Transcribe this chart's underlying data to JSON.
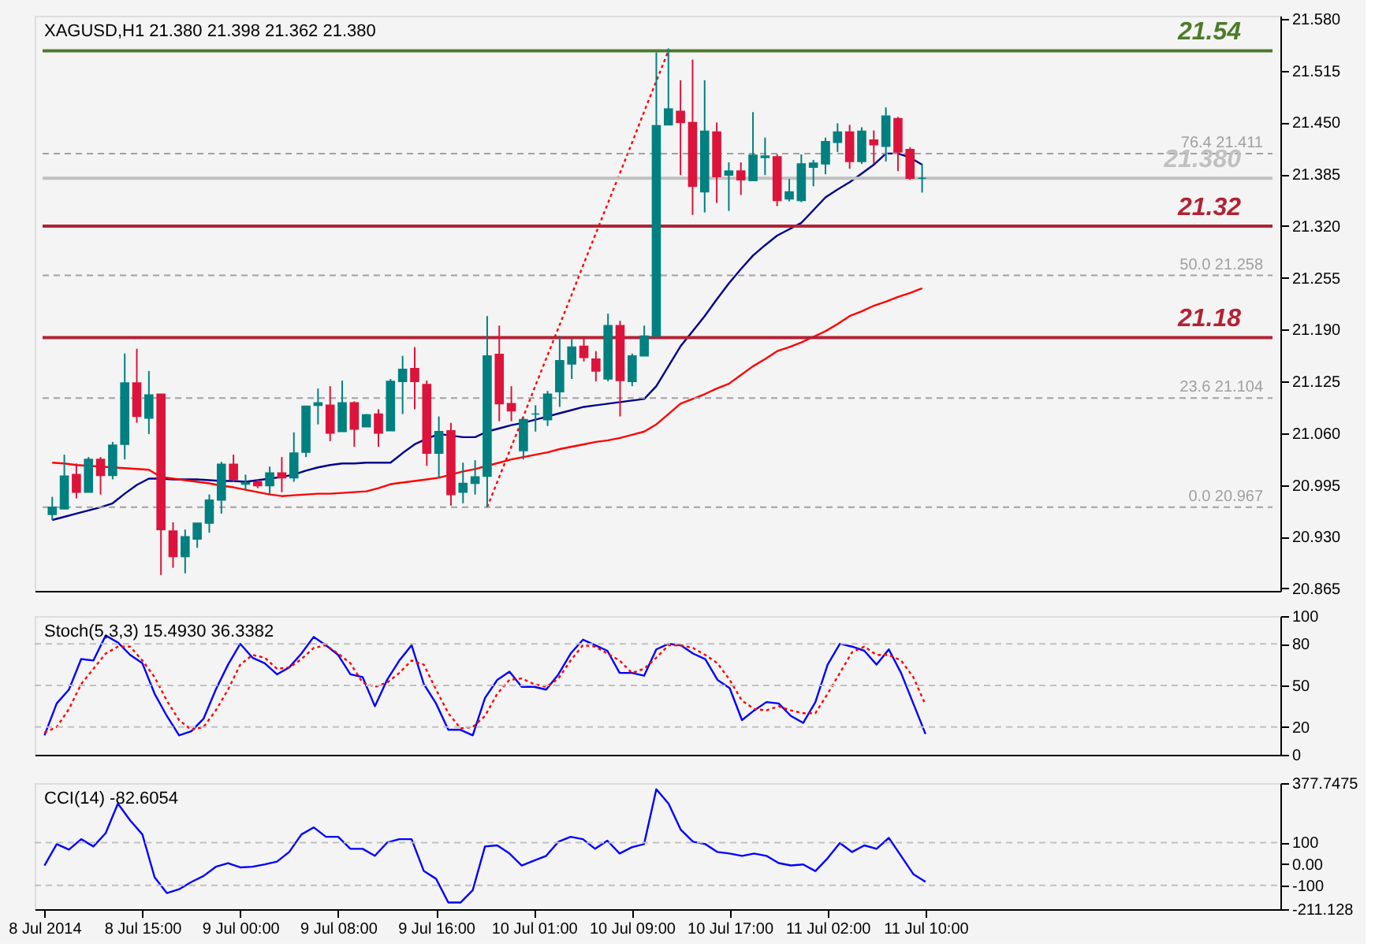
{
  "chart_data": [
    {
      "type": "candlestick",
      "title": "XAGUSD,H1  21.380 21.398 21.362 21.380",
      "categories": [
        null,
        null,
        null,
        null,
        null,
        null,
        null,
        null,
        null,
        null,
        null,
        null,
        null,
        null,
        null,
        null,
        null,
        null,
        null,
        null,
        null,
        null,
        null,
        null,
        null,
        null,
        null,
        null,
        null,
        null,
        null,
        null,
        null,
        null,
        null,
        null,
        null,
        null,
        null,
        null,
        null,
        null,
        null,
        null,
        null,
        null,
        null,
        null,
        null,
        null,
        null,
        null,
        null,
        null,
        null,
        null,
        null,
        null,
        null,
        null,
        null,
        null,
        null,
        null,
        null,
        null,
        null,
        null,
        null,
        null,
        null,
        null,
        null
      ],
      "ohlc": [
        [
          20.958,
          20.98,
          20.951,
          20.967
        ],
        [
          20.965,
          21.033,
          20.965,
          21.006
        ],
        [
          21.008,
          21.022,
          20.978,
          20.986
        ],
        [
          20.986,
          21.03,
          20.986,
          21.027
        ],
        [
          21.027,
          21.03,
          20.983,
          21.007
        ],
        [
          21.007,
          21.049,
          21.002,
          21.045
        ],
        [
          21.046,
          21.16,
          21.027,
          21.123
        ],
        [
          21.123,
          21.166,
          21.073,
          21.081
        ],
        [
          21.079,
          21.138,
          21.059,
          21.108
        ],
        [
          21.109,
          21.109,
          20.882,
          20.939
        ],
        [
          20.937,
          20.948,
          20.891,
          20.905
        ],
        [
          20.905,
          20.939,
          20.884,
          20.93
        ],
        [
          20.927,
          20.947,
          20.916,
          20.947
        ],
        [
          20.947,
          20.983,
          20.935,
          20.976
        ],
        [
          20.976,
          21.024,
          20.959,
          21.021
        ],
        [
          21.021,
          21.033,
          20.999,
          21.002
        ],
        [
          20.996,
          21.008,
          20.989,
          20.998
        ],
        [
          20.999,
          21.002,
          20.991,
          20.994
        ],
        [
          20.994,
          21.018,
          20.983,
          21.01
        ],
        [
          21.01,
          21.03,
          20.986,
          21.004
        ],
        [
          21.004,
          21.061,
          20.999,
          21.035
        ],
        [
          21.036,
          21.094,
          21.03,
          21.094
        ],
        [
          21.095,
          21.116,
          21.071,
          21.098
        ],
        [
          21.095,
          21.119,
          21.05,
          21.06
        ],
        [
          21.062,
          21.126,
          21.062,
          21.098
        ],
        [
          21.098,
          21.1,
          21.043,
          21.065
        ],
        [
          21.068,
          21.084,
          21.068,
          21.083
        ],
        [
          21.084,
          21.09,
          21.043,
          21.06
        ],
        [
          21.063,
          21.128,
          21.063,
          21.125
        ],
        [
          21.125,
          21.157,
          21.084,
          21.14
        ],
        [
          21.141,
          21.168,
          21.09,
          21.125
        ],
        [
          21.121,
          21.126,
          21.019,
          21.035
        ],
        [
          21.035,
          21.081,
          21.004,
          21.062
        ],
        [
          21.063,
          21.073,
          20.969,
          20.983
        ],
        [
          20.986,
          21.023,
          20.972,
          20.997
        ],
        [
          20.997,
          21.026,
          20.983,
          21.005
        ],
        [
          21.006,
          21.207,
          20.967,
          21.157
        ],
        [
          21.159,
          21.195,
          21.075,
          21.097
        ],
        [
          21.097,
          21.119,
          21.075,
          21.088
        ],
        [
          21.038,
          21.08,
          21.027,
          21.077
        ],
        [
          21.084,
          21.095,
          21.062,
          21.084
        ],
        [
          21.077,
          21.113,
          21.069,
          21.109
        ],
        [
          21.112,
          21.182,
          21.093,
          21.151
        ],
        [
          21.147,
          21.179,
          21.128,
          21.168
        ],
        [
          21.169,
          21.179,
          21.15,
          21.155
        ],
        [
          21.153,
          21.163,
          21.125,
          21.138
        ],
        [
          21.128,
          21.21,
          21.125,
          21.195
        ],
        [
          21.195,
          21.201,
          21.081,
          21.126
        ],
        [
          21.125,
          21.16,
          21.119,
          21.157
        ],
        [
          21.157,
          21.195,
          21.157,
          21.182
        ],
        [
          21.182,
          21.538,
          21.182,
          21.446
        ],
        [
          21.447,
          21.543,
          21.447,
          21.467
        ],
        [
          21.464,
          21.503,
          21.384,
          21.45
        ],
        [
          21.45,
          21.529,
          21.334,
          21.37
        ],
        [
          21.363,
          21.503,
          21.337,
          21.439
        ],
        [
          21.438,
          21.45,
          21.349,
          21.382
        ],
        [
          21.384,
          21.4,
          21.339,
          21.389
        ],
        [
          21.389,
          21.4,
          21.359,
          21.378
        ],
        [
          21.377,
          21.463,
          21.377,
          21.409
        ],
        [
          21.406,
          21.431,
          21.384,
          21.408
        ],
        [
          21.407,
          21.41,
          21.345,
          21.352
        ],
        [
          21.354,
          21.379,
          21.351,
          21.363
        ],
        [
          21.352,
          21.41,
          21.35,
          21.398
        ],
        [
          21.394,
          21.403,
          21.37,
          21.399
        ],
        [
          21.398,
          21.431,
          21.385,
          21.426
        ],
        [
          21.425,
          21.449,
          21.413,
          21.438
        ],
        [
          21.438,
          21.447,
          21.392,
          21.401
        ],
        [
          21.401,
          21.444,
          21.398,
          21.439
        ],
        [
          21.428,
          21.44,
          21.398,
          21.422
        ],
        [
          21.42,
          21.469,
          21.401,
          21.458
        ],
        [
          21.455,
          21.457,
          21.389,
          21.413
        ],
        [
          21.416,
          21.419,
          21.378,
          21.38
        ],
        [
          21.38,
          21.398,
          21.362,
          21.38
        ]
      ],
      "colors": [
        "#008080",
        "#008080",
        "#dc143c",
        "#008080",
        "#dc143c",
        "#008080",
        "#008080",
        "#dc143c",
        "#008080",
        "#dc143c",
        "#dc143c",
        "#008080",
        "#008080",
        "#008080",
        "#008080",
        "#dc143c",
        "#008080",
        "#dc143c",
        "#008080",
        "#dc143c",
        "#008080",
        "#008080",
        "#008080",
        "#dc143c",
        "#008080",
        "#dc143c",
        "#008080",
        "#dc143c",
        "#008080",
        "#008080",
        "#dc143c",
        "#dc143c",
        "#008080",
        "#dc143c",
        "#008080",
        "#008080",
        "#008080",
        "#dc143c",
        "#dc143c",
        "#008080",
        "#008080",
        "#008080",
        "#008080",
        "#008080",
        "#dc143c",
        "#dc143c",
        "#008080",
        "#dc143c",
        "#008080",
        "#008080",
        "#008080",
        "#008080",
        "#dc143c",
        "#dc143c",
        "#008080",
        "#dc143c",
        "#008080",
        "#dc143c",
        "#008080",
        "#008080",
        "#dc143c",
        "#008080",
        "#008080",
        "#008080",
        "#008080",
        "#008080",
        "#dc143c",
        "#008080",
        "#dc143c",
        "#008080",
        "#dc143c",
        "#dc143c",
        "#008080"
      ],
      "series": [
        {
          "type": "line",
          "color": "#00008b",
          "line_style": "solid",
          "values": [
            20.951,
            20.955,
            20.959,
            20.963,
            20.967,
            20.972,
            20.984,
            20.995,
            21.003,
            21.003,
            21.002,
            21.002,
            21.002,
            21.001,
            21.0,
            21.0,
            20.999,
            21.001,
            21.003,
            21.005,
            21.008,
            21.013,
            21.017,
            21.02,
            21.022,
            21.022,
            21.023,
            21.023,
            21.023,
            21.035,
            21.046,
            21.053,
            21.059,
            21.057,
            21.055,
            21.055,
            21.062,
            21.066,
            21.07,
            21.073,
            21.077,
            21.081,
            21.085,
            21.089,
            21.093,
            21.095,
            21.097,
            21.099,
            21.101,
            21.103,
            21.119,
            21.144,
            21.169,
            21.188,
            21.207,
            21.228,
            21.248,
            21.266,
            21.283,
            21.296,
            21.308,
            21.316,
            21.324,
            21.34,
            21.356,
            21.366,
            21.375,
            21.386,
            21.397,
            21.411,
            21.411,
            21.406,
            21.397
          ]
        },
        {
          "type": "line",
          "color": "#ff0000",
          "line_style": "solid",
          "values": [
            21.023,
            21.022,
            21.02,
            21.019,
            21.018,
            21.017,
            21.016,
            21.015,
            21.014,
            21.005,
            21.003,
            21.001,
            20.999,
            20.997,
            20.994,
            20.992,
            20.989,
            20.986,
            20.983,
            20.981,
            20.982,
            20.983,
            20.984,
            20.984,
            20.985,
            20.986,
            20.987,
            20.991,
            20.996,
            20.998,
            21.0,
            21.002,
            21.004,
            21.008,
            21.012,
            21.015,
            21.019,
            21.023,
            21.027,
            21.03,
            21.033,
            21.036,
            21.04,
            21.043,
            21.046,
            21.049,
            21.051,
            21.054,
            21.058,
            21.062,
            21.071,
            21.084,
            21.097,
            21.103,
            21.109,
            21.116,
            21.122,
            21.133,
            21.144,
            21.153,
            21.163,
            21.168,
            21.174,
            21.181,
            21.188,
            21.197,
            21.207,
            21.213,
            21.22,
            21.225,
            21.231,
            21.236,
            21.242
          ]
        },
        {
          "type": "line",
          "color": "#ff0000",
          "line_style": "dotted",
          "values": [
            null,
            null,
            null,
            null,
            null,
            null,
            null,
            null,
            null,
            null,
            null,
            null,
            null,
            null,
            null,
            null,
            null,
            null,
            null,
            null,
            null,
            null,
            null,
            null,
            null,
            null,
            null,
            null,
            null,
            null,
            null,
            null,
            null,
            null,
            null,
            null,
            20.967,
            21.005,
            21.043,
            21.081,
            21.12,
            21.158,
            21.196,
            21.234,
            21.273,
            21.311,
            21.349,
            21.387,
            21.425,
            21.464,
            21.502,
            21.54,
            null,
            null,
            null,
            null,
            null,
            null,
            null,
            null,
            null,
            null,
            null,
            null,
            null,
            null,
            null,
            null,
            null,
            null,
            null,
            null,
            null
          ]
        }
      ],
      "ylim": [
        20.862,
        21.584
      ],
      "yticks": [
        {
          "value": 21.58,
          "label": "21.580"
        },
        21.515,
        {
          "value": 21.45,
          "label": "21.450"
        },
        21.385,
        {
          "value": 21.32,
          "label": "21.320"
        },
        21.255,
        {
          "value": 21.19,
          "label": "21.190"
        },
        21.125,
        {
          "value": 21.06,
          "label": "21.060"
        },
        20.995,
        {
          "value": 20.93,
          "label": "20.930"
        },
        20.865
      ],
      "ref_lines": [
        {
          "axis": "y",
          "value": 21.411,
          "label": "76.4  21.411",
          "color": "#a0a0a0",
          "line_style": "dashed"
        },
        {
          "axis": "y",
          "value": 21.258,
          "label": "50.0  21.258",
          "color": "#a0a0a0",
          "line_style": "dashed"
        },
        {
          "axis": "y",
          "value": 21.104,
          "label": "23.6  21.104",
          "color": "#a0a0a0",
          "line_style": "dashed"
        },
        {
          "axis": "y",
          "value": 20.967,
          "label": "0.0  20.967",
          "color": "#a0a0a0",
          "line_style": "dashed"
        },
        {
          "axis": "y",
          "value": 21.38,
          "label": "21.380",
          "color": "#c0c0c0",
          "line_style": "solid"
        },
        {
          "axis": "y",
          "value": 21.54,
          "label": "21.54",
          "color": "#4e7a2a",
          "line_style": "solid"
        },
        {
          "axis": "y",
          "value": 21.32,
          "label": "21.32",
          "color": "#b22234",
          "line_style": "solid"
        },
        {
          "axis": "y",
          "value": 21.18,
          "label": "21.18",
          "color": "#b22234",
          "line_style": "solid"
        }
      ],
      "grid": false,
      "tick_labels": "y"
    },
    {
      "type": "line",
      "title": "Stoch(5,3,3) 15.4930 36.3382",
      "categories": [
        null,
        null,
        null,
        null,
        null,
        null,
        null,
        null,
        null,
        null,
        null,
        null,
        null,
        null,
        null,
        null,
        null,
        null,
        null,
        null,
        null,
        null,
        null,
        null,
        null,
        null,
        null,
        null,
        null,
        null,
        null,
        null,
        null,
        null,
        null,
        null,
        null,
        null,
        null,
        null,
        null,
        null,
        null,
        null,
        null,
        null,
        null,
        null,
        null,
        null,
        null,
        null,
        null,
        null,
        null,
        null,
        null,
        null,
        null,
        null,
        null,
        null,
        null,
        null,
        null,
        null,
        null,
        null,
        null,
        null,
        null,
        null,
        null
      ],
      "series": [
        {
          "color": "#0000ff",
          "line_style": "solid",
          "values": [
            14,
            37,
            47,
            69,
            68,
            86,
            81,
            72,
            66,
            44,
            28,
            14,
            17,
            26,
            47,
            65,
            80,
            70,
            66,
            58,
            63,
            73,
            85,
            79,
            72,
            58,
            56,
            35,
            54,
            68,
            79,
            51,
            37,
            18,
            18,
            14,
            41,
            54,
            60,
            49,
            49,
            47,
            58,
            73,
            83,
            79,
            75,
            59,
            59,
            57,
            76,
            80,
            79,
            73,
            69,
            54,
            48,
            25,
            32,
            38,
            37,
            28,
            23,
            38,
            65,
            80,
            78,
            75,
            65,
            76,
            59,
            37,
            15
          ]
        },
        {
          "color": "#ff0000",
          "line_style": "dotted",
          "values": [
            16,
            20,
            33,
            51,
            62,
            73,
            78,
            78,
            68,
            56,
            39,
            25,
            18,
            20,
            32,
            47,
            65,
            72,
            70,
            62,
            63,
            69,
            77,
            79,
            73,
            66,
            52,
            49,
            52,
            59,
            68,
            65,
            47,
            30,
            19,
            20,
            28,
            44,
            54,
            55,
            51,
            49,
            55,
            68,
            79,
            78,
            73,
            68,
            59,
            62,
            70,
            79,
            79,
            77,
            72,
            66,
            54,
            39,
            33,
            32,
            35,
            32,
            30,
            30,
            44,
            59,
            74,
            78,
            72,
            72,
            68,
            56,
            36
          ]
        }
      ],
      "ylim": [
        0,
        100
      ],
      "yticks": [
        100,
        80,
        50,
        20,
        0
      ],
      "ref_lines": [
        {
          "axis": "y",
          "value": 80,
          "color": "#c0c0c0",
          "line_style": "dashed"
        },
        {
          "axis": "y",
          "value": 50,
          "color": "#c0c0c0",
          "line_style": "dashed"
        },
        {
          "axis": "y",
          "value": 20,
          "color": "#c0c0c0",
          "line_style": "dashed"
        }
      ],
      "grid": false,
      "tick_labels": "y"
    },
    {
      "type": "line",
      "title": "CCI(14) -82.6054",
      "categories": [
        "8 Jul 2014",
        null,
        null,
        null,
        null,
        null,
        null,
        null,
        "8 Jul 15:00",
        null,
        null,
        null,
        null,
        null,
        null,
        null,
        "9 Jul 00:00",
        null,
        null,
        null,
        null,
        null,
        null,
        null,
        "9 Jul 08:00",
        null,
        null,
        null,
        null,
        null,
        null,
        null,
        "9 Jul 16:00",
        null,
        null,
        null,
        null,
        null,
        null,
        null,
        "10 Jul 01:00",
        null,
        null,
        null,
        null,
        null,
        null,
        null,
        "10 Jul 09:00",
        null,
        null,
        null,
        null,
        null,
        null,
        null,
        "10 Jul 17:00",
        null,
        null,
        null,
        null,
        null,
        null,
        null,
        "11 Jul 02:00",
        null,
        null,
        null,
        null,
        null,
        null,
        null,
        "11 Jul 10:00"
      ],
      "series": [
        {
          "color": "#0000ff",
          "line_style": "solid",
          "values": [
            -7,
            93,
            67,
            116,
            82,
            144,
            282,
            204,
            138,
            -62,
            -136,
            -118,
            -84,
            -56,
            -13,
            4,
            -16,
            -13,
            -2,
            11,
            56,
            138,
            171,
            127,
            127,
            71,
            71,
            38,
            100,
            116,
            116,
            -33,
            -69,
            -180,
            -180,
            -122,
            82,
            87,
            49,
            -7,
            16,
            38,
            104,
            127,
            116,
            71,
            109,
            49,
            78,
            93,
            349,
            282,
            160,
            104,
            93,
            56,
            49,
            38,
            49,
            38,
            4,
            -7,
            -2,
            -33,
            27,
            98,
            56,
            87,
            71,
            122,
            38,
            -47,
            -83
          ]
        }
      ],
      "ylim": [
        -211.128,
        377.7475
      ],
      "yticks": [
        {
          "value": 377.7475,
          "label": "377.7475"
        },
        100,
        {
          "value": 0,
          "label": "0.00"
        },
        -100,
        {
          "value": -211.128,
          "label": "-211.128"
        }
      ],
      "ref_lines": [
        {
          "axis": "y",
          "value": 100,
          "color": "#c0c0c0",
          "line_style": "dashed"
        },
        {
          "axis": "y",
          "value": -100,
          "color": "#c0c0c0",
          "line_style": "dashed"
        }
      ],
      "grid": false
    }
  ]
}
